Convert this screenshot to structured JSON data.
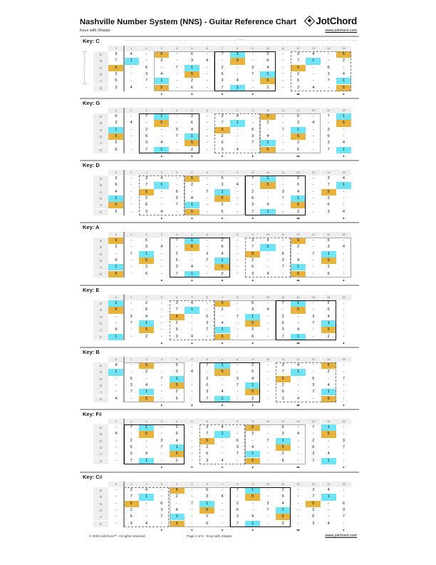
{
  "header": {
    "title": "Nashville Number System (NNS) - Guitar Reference Chart",
    "subtitle": "Keys with Sharps",
    "brand": "JotChord",
    "url": "www.jotchord.com"
  },
  "labels": {
    "frets": "Frets",
    "strings": "Strings"
  },
  "fret_numbers": [
    "0",
    "1",
    "2",
    "3",
    "4",
    "5",
    "6",
    "7",
    "8",
    "9",
    "10",
    "11",
    "12",
    "13",
    "14",
    "15"
  ],
  "string_names": [
    "E",
    "B",
    "G",
    "D",
    "A",
    "E"
  ],
  "fret_markers": [
    "",
    "",
    "",
    "•",
    "",
    "•",
    "",
    "•",
    "",
    "•",
    "",
    "",
    "••",
    "",
    "",
    "•"
  ],
  "colors": {
    "degree_5": "#E8B33C",
    "degree_1": "#6EE4F5",
    "main_box": "#111111",
    "alt_box": "#aaaaaa"
  },
  "keys": [
    {
      "name": "Key: C",
      "root": 0,
      "main_box": [
        7,
        10
      ],
      "dash_box": [
        12,
        15
      ],
      "grey_box": [
        3,
        6
      ]
    },
    {
      "name": "Key: G",
      "root": 7,
      "main_box": [
        2,
        5
      ],
      "dash_box": [
        7,
        9
      ],
      "grey_box": [
        10,
        13
      ]
    },
    {
      "name": "Key: D",
      "root": 2,
      "main_box": [
        9,
        12
      ],
      "dash_box": [
        2,
        4
      ],
      "grey_box": [
        5,
        8
      ]
    },
    {
      "name": "Key: A",
      "root": 9,
      "main_box": [
        4,
        7
      ],
      "dash_box": [
        9,
        11
      ],
      "grey_box": [
        12,
        15
      ]
    },
    {
      "name": "Key: E",
      "root": 4,
      "main_box": [
        11,
        14
      ],
      "dash_box": [
        4,
        6
      ],
      "grey_box": [
        7,
        10
      ]
    },
    {
      "name": "Key: B",
      "root": 11,
      "main_box": [
        6,
        9
      ],
      "dash_box": [
        11,
        14
      ],
      "grey_box": [
        1,
        4
      ]
    },
    {
      "name": "Key: F♯",
      "root": 6,
      "main_box": [
        1,
        4
      ],
      "dash_box": [
        6,
        8
      ],
      "grey_box": [
        9,
        12
      ]
    },
    {
      "name": "Key: C♯",
      "root": 1,
      "main_box": [
        8,
        11
      ],
      "dash_box": [
        1,
        3
      ],
      "grey_box": [
        4,
        7
      ]
    }
  ],
  "footer": {
    "copyright": "© 2025 JotChord™. All rights reserved.",
    "page": "Page 1 of 2 - Keys with Sharps",
    "url": "www.jotchord.com"
  }
}
